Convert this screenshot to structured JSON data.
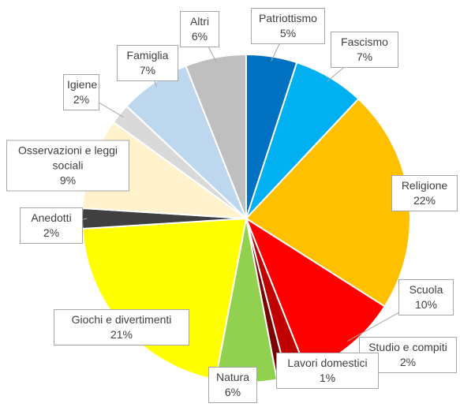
{
  "chart_data": {
    "type": "pie",
    "categories": [
      "Patriottismo",
      "Fascismo",
      "Religione",
      "Scuola",
      "Studio e compiti",
      "Lavori domestici",
      "Natura",
      "Giochi e divertimenti",
      "Anedotti",
      "Osservazioni e leggi sociali",
      "Igiene",
      "Famiglia",
      "Altri"
    ],
    "values": [
      5,
      7,
      22,
      10,
      2,
      1,
      6,
      21,
      2,
      9,
      2,
      7,
      6
    ],
    "value_labels": [
      "5%",
      "7%",
      "22%",
      "10%",
      "2%",
      "1%",
      "6%",
      "21%",
      "2%",
      "9%",
      "2%",
      "7%",
      "6%"
    ],
    "colors": [
      "#0070c0",
      "#00b0f0",
      "#ffc000",
      "#ff0000",
      "#c00000",
      "#7b0000",
      "#92d050",
      "#ffff00",
      "#404040",
      "#fff2cc",
      "#d9d9d9",
      "#bdd7ee",
      "#bfbfbf"
    ]
  }
}
